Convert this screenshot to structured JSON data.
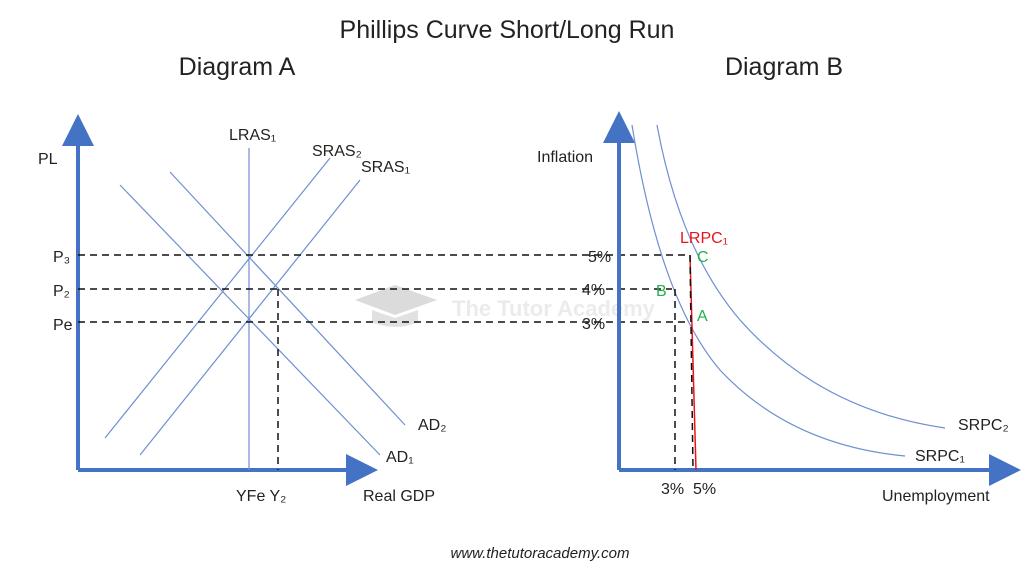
{
  "title": "Phillips Curve Short/Long Run",
  "footer": "www.thetutoracademy.com",
  "watermark": "The Tutor Academy",
  "colors": {
    "axis": "#4472c4",
    "curve": "#6f8fd0",
    "lrpc": "#e8141c",
    "point": "#22b14c"
  },
  "diagram_a": {
    "title": "Diagram A",
    "y_label": "PL",
    "x_label": "Real GDP",
    "price_levels": [
      "P₃",
      "P₂",
      "Pe"
    ],
    "x_ticks": "YFe Y₂",
    "lras": "LRAS₁",
    "sras2": "SRAS₂",
    "sras1": "SRAS₁",
    "ad2": "AD₂",
    "ad1": "AD₁"
  },
  "diagram_b": {
    "title": "Diagram B",
    "y_label": "Inflation",
    "x_label": "Unemployment",
    "inflation_ticks": [
      "5%",
      "4%",
      "3%"
    ],
    "x_ticks": "3%  5%",
    "lrpc": "LRPC₁",
    "srpc2": "SRPC₂",
    "srpc1": "SRPC₁",
    "points": [
      "C",
      "B",
      "A"
    ]
  }
}
